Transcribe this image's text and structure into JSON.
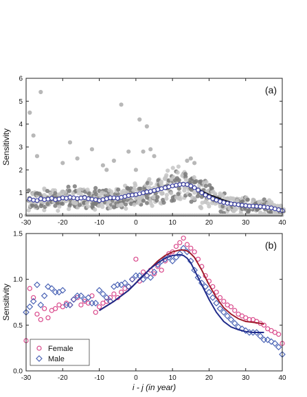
{
  "chart_data": [
    {
      "type": "scatter",
      "panel_label": "(a)",
      "xlabel": "",
      "ylabel": "Sensitivity",
      "xlim": [
        -30,
        40
      ],
      "ylim": [
        0,
        6
      ],
      "xticks": [
        "-30",
        "-20",
        "-10",
        "0",
        "10",
        "20",
        "30",
        "40"
      ],
      "yticks": [
        "0",
        "1",
        "2",
        "3",
        "4",
        "5",
        "6"
      ],
      "colors": {
        "scatter_light": "#c4c4c4",
        "scatter_dark": "#7a7a7a",
        "mean_marker": "#3a3fa0",
        "mean_line": "#111111"
      },
      "outliers": [
        {
          "x": -29,
          "y": 4.5
        },
        {
          "x": -28,
          "y": 3.5
        },
        {
          "x": -26,
          "y": 5.4
        },
        {
          "x": -27,
          "y": 2.6
        },
        {
          "x": -18,
          "y": 3.2
        },
        {
          "x": -16,
          "y": 2.5
        },
        {
          "x": -12,
          "y": 2.9
        },
        {
          "x": -9,
          "y": 2.2
        },
        {
          "x": -6,
          "y": 2.4
        },
        {
          "x": -4,
          "y": 4.85
        },
        {
          "x": -2,
          "y": 2.8
        },
        {
          "x": 0,
          "y": 2.0
        },
        {
          "x": 1,
          "y": 4.2
        },
        {
          "x": 2,
          "y": 2.8
        },
        {
          "x": 3,
          "y": 3.9
        },
        {
          "x": 4,
          "y": 2.9
        },
        {
          "x": 5,
          "y": 2.6
        },
        {
          "x": -8,
          "y": 2.0
        },
        {
          "x": -20,
          "y": 2.3
        },
        {
          "x": 14,
          "y": 2.4
        },
        {
          "x": 15,
          "y": 2.5
        },
        {
          "x": 16,
          "y": 2.3
        }
      ],
      "mean_series": {
        "x": [
          -29,
          -28,
          -27,
          -26,
          -25,
          -24,
          -23,
          -22,
          -21,
          -20,
          -19,
          -18,
          -17,
          -16,
          -15,
          -14,
          -13,
          -12,
          -11,
          -10,
          -9,
          -8,
          -7,
          -6,
          -5,
          -4,
          -3,
          -2,
          -1,
          0,
          1,
          2,
          3,
          4,
          5,
          6,
          7,
          8,
          9,
          10,
          11,
          12,
          13,
          14,
          15,
          16,
          17,
          18,
          19,
          20,
          21,
          22,
          23,
          24,
          25,
          26,
          27,
          28,
          29,
          30,
          31,
          32,
          33,
          34,
          35,
          36,
          37,
          38,
          39,
          40
        ],
        "y": [
          0.72,
          0.68,
          0.66,
          0.74,
          0.7,
          0.72,
          0.76,
          0.7,
          0.73,
          0.78,
          0.76,
          0.8,
          0.78,
          0.75,
          0.77,
          0.79,
          0.74,
          0.72,
          0.7,
          0.66,
          0.7,
          0.74,
          0.78,
          0.78,
          0.76,
          0.8,
          0.84,
          0.88,
          0.9,
          0.92,
          0.96,
          1.0,
          1.04,
          1.06,
          1.1,
          1.14,
          1.18,
          1.22,
          1.26,
          1.3,
          1.33,
          1.36,
          1.37,
          1.36,
          1.3,
          1.22,
          1.12,
          1.0,
          0.9,
          0.82,
          0.74,
          0.68,
          0.62,
          0.58,
          0.54,
          0.52,
          0.5,
          0.48,
          0.46,
          0.44,
          0.42,
          0.42,
          0.41,
          0.4,
          0.38,
          0.36,
          0.34,
          0.3,
          0.26,
          0.22
        ]
      },
      "fit_line": {
        "x": [
          -10,
          -5,
          0,
          2,
          4,
          6,
          8,
          10,
          12,
          13,
          14,
          16,
          18,
          20,
          22,
          24,
          26,
          28,
          30,
          32,
          34,
          36,
          38,
          40
        ],
        "y": [
          0.66,
          0.76,
          0.92,
          1.0,
          1.07,
          1.14,
          1.22,
          1.29,
          1.35,
          1.37,
          1.35,
          1.24,
          1.08,
          0.92,
          0.8,
          0.68,
          0.58,
          0.52,
          0.47,
          0.43,
          0.4,
          0.36,
          0.31,
          0.24
        ]
      }
    },
    {
      "type": "scatter",
      "panel_label": "(b)",
      "xlabel": "i - j (in year)",
      "ylabel": "Sensitivity",
      "xlim": [
        -30,
        40
      ],
      "ylim": [
        0,
        1.5
      ],
      "xticks": [
        "-30",
        "-20",
        "-10",
        "0",
        "10",
        "20",
        "30",
        "40"
      ],
      "yticks": [
        "0.0",
        "0.5",
        "1.0",
        "1.5"
      ],
      "legend_position": "bottom-left",
      "series": [
        {
          "name": "Female",
          "marker": "circle",
          "color": "#d9478a",
          "fit_color": "#a01d2c",
          "x": [
            -30,
            -29,
            -28,
            -27,
            -26,
            -25,
            -24,
            -23,
            -22,
            -21,
            -20,
            -19,
            -18,
            -17,
            -16,
            -15,
            -14,
            -13,
            -12,
            -11,
            -10,
            -9,
            -8,
            -7,
            -6,
            -5,
            -4,
            -3,
            -2,
            -1,
            0,
            1,
            2,
            3,
            4,
            5,
            6,
            7,
            8,
            9,
            10,
            11,
            12,
            13,
            14,
            15,
            16,
            17,
            18,
            19,
            20,
            21,
            22,
            23,
            24,
            25,
            26,
            27,
            28,
            29,
            30,
            31,
            32,
            33,
            34,
            35,
            36,
            37,
            38,
            39,
            40
          ],
          "y": [
            0.33,
            0.9,
            0.8,
            0.62,
            0.56,
            0.68,
            0.58,
            0.66,
            0.68,
            0.72,
            0.7,
            0.74,
            0.72,
            0.78,
            0.8,
            0.72,
            0.76,
            0.74,
            0.82,
            0.64,
            0.7,
            0.74,
            0.76,
            0.8,
            0.84,
            0.8,
            0.86,
            0.9,
            0.92,
            1.0,
            1.22,
            0.98,
            1.08,
            1.04,
            1.1,
            1.06,
            1.14,
            1.1,
            1.2,
            1.28,
            1.3,
            1.36,
            1.4,
            1.45,
            1.38,
            1.34,
            1.3,
            1.22,
            1.14,
            1.04,
            0.98,
            0.92,
            0.86,
            0.8,
            0.76,
            0.72,
            0.7,
            0.66,
            0.62,
            0.6,
            0.58,
            0.56,
            0.56,
            0.54,
            0.52,
            0.5,
            0.46,
            0.44,
            0.42,
            0.4,
            0.3
          ]
        },
        {
          "name": "Male",
          "marker": "diamond",
          "color": "#4a63b5",
          "fit_color": "#1f2a8a",
          "x": [
            -30,
            -29,
            -28,
            -27,
            -26,
            -25,
            -24,
            -23,
            -22,
            -21,
            -20,
            -19,
            -18,
            -17,
            -16,
            -15,
            -14,
            -13,
            -12,
            -11,
            -10,
            -9,
            -8,
            -7,
            -6,
            -5,
            -4,
            -3,
            -2,
            -1,
            0,
            1,
            2,
            3,
            4,
            5,
            6,
            7,
            8,
            9,
            10,
            11,
            12,
            13,
            14,
            15,
            16,
            17,
            18,
            19,
            20,
            21,
            22,
            23,
            24,
            25,
            26,
            27,
            28,
            29,
            30,
            31,
            32,
            33,
            34,
            35,
            36,
            37,
            38,
            39,
            40
          ],
          "y": [
            0.64,
            0.7,
            0.76,
            0.94,
            0.72,
            0.82,
            0.92,
            0.9,
            0.86,
            0.86,
            0.88,
            0.72,
            0.72,
            0.78,
            0.82,
            0.82,
            0.78,
            0.8,
            0.74,
            0.74,
            0.88,
            0.84,
            0.8,
            0.76,
            0.92,
            0.94,
            0.94,
            0.96,
            0.92,
            1.0,
            1.04,
            1.04,
            1.0,
            1.04,
            1.02,
            1.08,
            1.16,
            1.2,
            1.22,
            1.24,
            1.2,
            1.24,
            1.28,
            1.34,
            1.3,
            1.2,
            1.1,
            1.02,
            0.96,
            0.92,
            0.86,
            0.8,
            0.74,
            0.68,
            0.64,
            0.6,
            0.56,
            0.52,
            0.48,
            0.46,
            0.44,
            0.42,
            0.42,
            0.42,
            0.38,
            0.34,
            0.34,
            0.32,
            0.3,
            0.26,
            0.18
          ]
        }
      ],
      "fits": [
        {
          "name": "Female",
          "x": [
            -10,
            -6,
            -2,
            0,
            2,
            4,
            6,
            8,
            10,
            12,
            13,
            14,
            15,
            16,
            18,
            20,
            22,
            24,
            26,
            28,
            30,
            32,
            34,
            35
          ],
          "y": [
            0.66,
            0.76,
            0.88,
            0.96,
            1.04,
            1.12,
            1.2,
            1.26,
            1.3,
            1.32,
            1.32,
            1.31,
            1.28,
            1.24,
            1.1,
            0.94,
            0.8,
            0.69,
            0.62,
            0.57,
            0.54,
            0.53,
            0.52,
            0.51
          ]
        },
        {
          "name": "Male",
          "x": [
            -10,
            -6,
            -2,
            0,
            2,
            4,
            6,
            8,
            10,
            12,
            13,
            14,
            15,
            16,
            18,
            20,
            22,
            24,
            26,
            28,
            30,
            32,
            34,
            35
          ],
          "y": [
            0.66,
            0.76,
            0.88,
            0.96,
            1.04,
            1.12,
            1.18,
            1.23,
            1.26,
            1.27,
            1.26,
            1.23,
            1.18,
            1.1,
            0.94,
            0.78,
            0.64,
            0.54,
            0.48,
            0.45,
            0.43,
            0.42,
            0.42,
            0.42
          ]
        }
      ]
    }
  ]
}
